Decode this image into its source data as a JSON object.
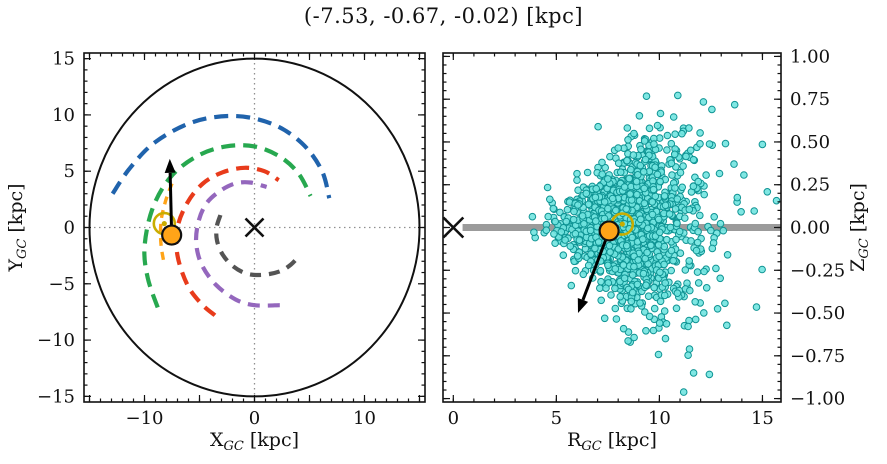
{
  "title": "(-7.53, -0.67, -0.02) [kpc]",
  "colors": {
    "frame": "#111111",
    "crosshair": "#8f8f8f",
    "galaxy_outline": "#111111",
    "center_marker": "#111111",
    "sun": "#c9ad00",
    "star_fill": "#ffa418",
    "star_edge": "#111111",
    "arrow": "#000000",
    "midplane_bar": "#9b9b9b",
    "scatter_fill": "#72e4e0",
    "scatter_edge": "#0f9494"
  },
  "chart_data": [
    {
      "id": "xy",
      "type": "line",
      "title": "",
      "xlabel": {
        "main": "X",
        "sub": "GC",
        "unit": " [kpc]"
      },
      "ylabel": {
        "main": "Y",
        "sub": "GC",
        "unit": " [kpc]"
      },
      "xlim": [
        -15.5,
        15.5
      ],
      "ylim": [
        -15.5,
        15.5
      ],
      "grid": "crosshair-dotted-at-zero",
      "xticks": {
        "major": [
          -15,
          -10,
          -5,
          0,
          5,
          10,
          15
        ],
        "minor_step": 1,
        "labels": [
          {
            "v": -10,
            "t": "−10"
          },
          {
            "v": 0,
            "t": "0"
          },
          {
            "v": 10,
            "t": "10"
          }
        ]
      },
      "yticks": {
        "major": [
          -15,
          -10,
          -5,
          0,
          5,
          10,
          15
        ],
        "minor_step": 1,
        "labels": [
          {
            "v": 15,
            "t": "15"
          },
          {
            "v": 10,
            "t": "10"
          },
          {
            "v": 5,
            "t": "5"
          },
          {
            "v": 0,
            "t": "0"
          },
          {
            "v": -5,
            "t": "−5"
          },
          {
            "v": -10,
            "t": "−10"
          },
          {
            "v": -15,
            "t": "−15"
          }
        ]
      },
      "galaxy_outline": {
        "cx": 0,
        "cy": 0,
        "r": 15
      },
      "center_marker": {
        "x": 0,
        "y": 0,
        "symbol": "x"
      },
      "sun": {
        "x": -8.2,
        "y": 0.35
      },
      "star": {
        "x": -7.53,
        "y": -0.67
      },
      "arrow": {
        "from": [
          -7.53,
          -0.67
        ],
        "to": [
          -7.7,
          6.1
        ]
      },
      "arms": [
        {
          "name": "blue",
          "color": "#2063ac",
          "width": 4.2,
          "dash": "14 8",
          "points": [
            [
              -12.9,
              3.0
            ],
            [
              -11.3,
              5.3
            ],
            [
              -9.0,
              7.6
            ],
            [
              -5.5,
              9.4
            ],
            [
              -1.8,
              9.9
            ],
            [
              1.6,
              9.2
            ],
            [
              4.3,
              7.5
            ],
            [
              6.1,
              5.1
            ],
            [
              6.8,
              2.6
            ]
          ]
        },
        {
          "name": "green",
          "color": "#27a84f",
          "width": 4.2,
          "dash": "14 8",
          "points": [
            [
              -8.8,
              -7.1
            ],
            [
              -9.7,
              -4.5
            ],
            [
              -10.0,
              -1.8
            ],
            [
              -9.3,
              1.6
            ],
            [
              -7.7,
              4.4
            ],
            [
              -5.3,
              6.3
            ],
            [
              -2.6,
              7.2
            ],
            [
              0.0,
              7.2
            ],
            [
              2.3,
              6.3
            ],
            [
              4.0,
              4.8
            ],
            [
              5.1,
              2.8
            ]
          ]
        },
        {
          "name": "red",
          "color": "#e83b1b",
          "width": 4.2,
          "dash": "13 8",
          "points": [
            [
              -3.6,
              -7.8
            ],
            [
              -4.8,
              -6.8
            ],
            [
              -6.1,
              -5.1
            ],
            [
              -7.0,
              -2.5
            ],
            [
              -7.0,
              0.0
            ],
            [
              -6.1,
              2.2
            ],
            [
              -4.7,
              3.9
            ],
            [
              -2.9,
              4.9
            ],
            [
              -0.9,
              5.3
            ],
            [
              0.9,
              5.0
            ],
            [
              2.2,
              4.2
            ]
          ]
        },
        {
          "name": "purple",
          "color": "#9467bd",
          "width": 4.2,
          "dash": "12 8",
          "points": [
            [
              2.3,
              -6.9
            ],
            [
              0.0,
              -6.9
            ],
            [
              -1.7,
              -6.4
            ],
            [
              -3.5,
              -5.1
            ],
            [
              -4.8,
              -3.3
            ],
            [
              -5.3,
              -1.4
            ],
            [
              -5.1,
              0.5
            ],
            [
              -4.4,
              2.1
            ],
            [
              -3.2,
              3.2
            ],
            [
              -1.8,
              3.9
            ],
            [
              -0.4,
              4.0
            ],
            [
              1.1,
              3.6
            ]
          ]
        },
        {
          "name": "gray",
          "color": "#545454",
          "width": 4.2,
          "dash": "11 8",
          "points": [
            [
              -3.1,
              1.1
            ],
            [
              -3.45,
              0.0
            ],
            [
              -3.4,
              -1.2
            ],
            [
              -2.9,
              -2.4
            ],
            [
              -2.0,
              -3.4
            ],
            [
              -0.7,
              -4.1
            ],
            [
              0.8,
              -4.2
            ],
            [
              2.3,
              -3.9
            ],
            [
              3.3,
              -3.3
            ],
            [
              4.1,
              -2.5
            ]
          ]
        },
        {
          "name": "orange",
          "color": "#ffa418",
          "width": 3.4,
          "dash": "8 6",
          "points": [
            [
              -7.5,
              3.9
            ],
            [
              -8.1,
              2.3
            ],
            [
              -8.5,
              0.5
            ],
            [
              -8.5,
              -1.5
            ],
            [
              -8.2,
              -3.3
            ]
          ]
        }
      ]
    },
    {
      "id": "rz",
      "type": "scatter",
      "title": "",
      "xlabel": {
        "main": "R",
        "sub": "GC",
        "unit": " [kpc]"
      },
      "ylabel": {
        "main": "Z",
        "sub": "GC",
        "unit": " [kpc]"
      },
      "xlim": [
        -0.5,
        15.9
      ],
      "ylim": [
        -1.02,
        1.02
      ],
      "ylabel_side": "right",
      "xticks": {
        "major": [
          0,
          5,
          10,
          15
        ],
        "minor_step": 1,
        "labels": [
          {
            "v": 0,
            "t": "0"
          },
          {
            "v": 5,
            "t": "5"
          },
          {
            "v": 10,
            "t": "10"
          },
          {
            "v": 15,
            "t": "15"
          }
        ]
      },
      "yticks": {
        "major": [
          1.0,
          0.75,
          0.5,
          0.25,
          0,
          -0.25,
          -0.5,
          -0.75,
          -1.0
        ],
        "minor_step": 0.05,
        "labels": [
          {
            "v": 1.0,
            "t": "1.00"
          },
          {
            "v": 0.75,
            "t": "0.75"
          },
          {
            "v": 0.5,
            "t": "0.50"
          },
          {
            "v": 0.25,
            "t": "0.25"
          },
          {
            "v": 0,
            "t": "0.00"
          },
          {
            "v": -0.25,
            "t": "−0.25"
          },
          {
            "v": -0.5,
            "t": "−0.50"
          },
          {
            "v": -0.75,
            "t": "−0.75"
          },
          {
            "v": -1.0,
            "t": "−1.00"
          }
        ]
      },
      "midplane_bar": {
        "z": 0,
        "from_r": 0.45,
        "to_r": 15.9,
        "thickness_px": 7
      },
      "center_marker": {
        "x": 0,
        "y": 0,
        "symbol": "x"
      },
      "sun": {
        "x": 8.2,
        "y": 0.02
      },
      "star": {
        "x": 7.56,
        "y": -0.02
      },
      "arrow": {
        "from": [
          7.56,
          -0.02
        ],
        "to": [
          6.05,
          -0.5
        ]
      },
      "points_distribution": {
        "n": 1400,
        "seed": 7,
        "core_fraction": 0.86,
        "r_core_mu": 8.35,
        "r_core_sigma": 1.5,
        "r_tail_mu": 8.2,
        "r_tail_sigma": 2.9,
        "r_min": 2.3,
        "r_max": 15.85,
        "z_sigma_base": 0.048,
        "z_sigma_flare_per_kpc": 0.034,
        "z_flare_start_r": 3.6,
        "z_offset": 0.015,
        "z_max": 1.0,
        "marker_radius_px": 3.3
      }
    }
  ]
}
